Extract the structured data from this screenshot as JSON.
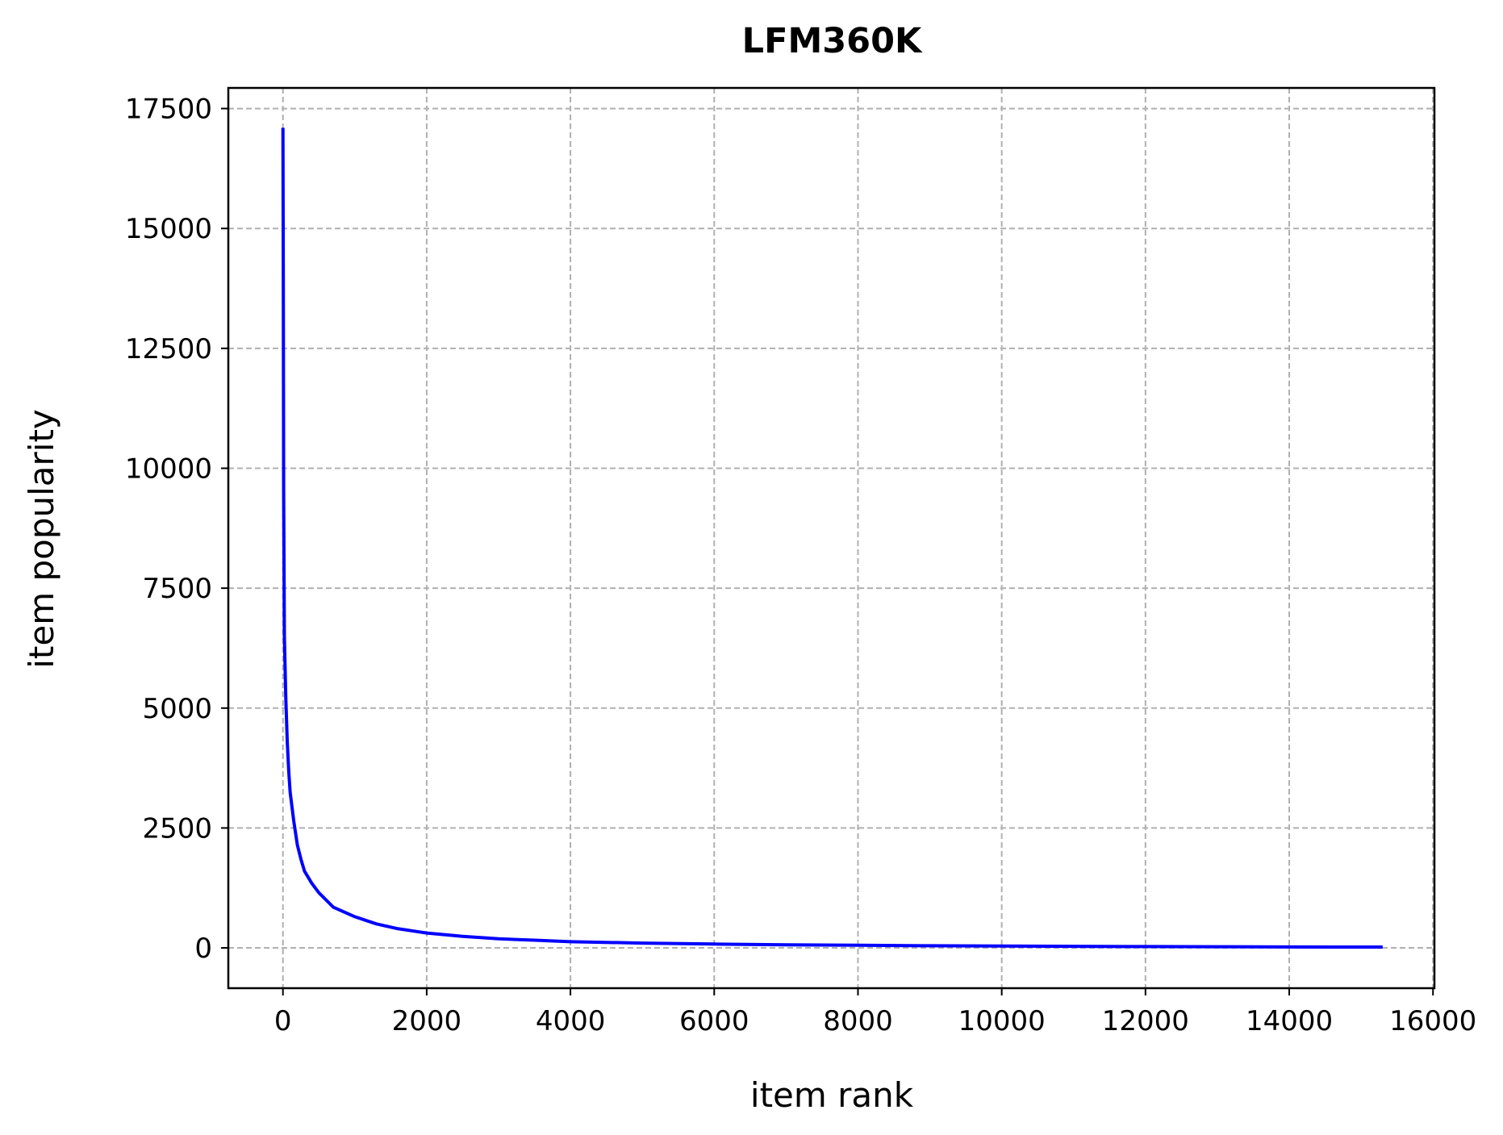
{
  "chart_data": {
    "type": "line",
    "title": "LFM360K",
    "xlabel": "item rank",
    "ylabel": "item popularity",
    "xlim": [
      -760,
      16020
    ],
    "ylim": [
      -840,
      17930
    ],
    "xticks": [
      0,
      2000,
      4000,
      6000,
      8000,
      10000,
      12000,
      14000,
      16000
    ],
    "xtick_labels": [
      "0",
      "2000",
      "4000",
      "6000",
      "8000",
      "10000",
      "12000",
      "14000",
      "16000"
    ],
    "yticks": [
      0,
      2500,
      5000,
      7500,
      10000,
      12500,
      15000,
      17500
    ],
    "ytick_labels": [
      "0",
      "2500",
      "5000",
      "7500",
      "10000",
      "12500",
      "15000",
      "17500"
    ],
    "grid": true,
    "legend": false,
    "series": [
      {
        "color": "#0000ff",
        "x": [
          0,
          5,
          10,
          20,
          40,
          60,
          80,
          100,
          150,
          200,
          250,
          300,
          400,
          500,
          700,
          1000,
          1300,
          1600,
          2000,
          2500,
          3000,
          3500,
          4000,
          5000,
          6000,
          7000,
          8000,
          9000,
          10000,
          11000,
          12000,
          13000,
          14000,
          15000,
          15300
        ],
        "y": [
          17100,
          14000,
          9500,
          6500,
          5200,
          4300,
          3700,
          3250,
          2650,
          2150,
          1850,
          1600,
          1350,
          1150,
          850,
          650,
          500,
          400,
          310,
          240,
          190,
          160,
          130,
          100,
          80,
          65,
          55,
          45,
          38,
          32,
          28,
          24,
          20,
          18,
          17
        ]
      }
    ]
  }
}
